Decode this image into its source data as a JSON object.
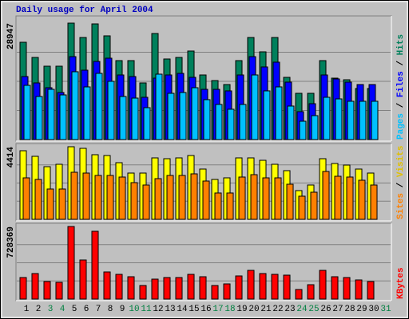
{
  "chart_data": [
    {
      "type": "bar",
      "title": "Daily usage for April 2004",
      "legend_separator": " / ",
      "ylim": [
        0,
        28947
      ],
      "yticks": [
        28947
      ],
      "grid": true,
      "series": [
        {
          "name": "Hits",
          "color": "#00805c",
          "values": [
            24190,
            20420,
            18240,
            18240,
            28947,
            25380,
            28750,
            25780,
            19630,
            19630,
            14080,
            26370,
            20030,
            20420,
            22010,
            16060,
            14670,
            13680,
            19630,
            25380,
            21810,
            25380,
            15470,
            11500,
            11500,
            19630,
            15270,
            14870,
            12690,
            12690,
            null
          ]
        },
        {
          "name": "Files",
          "color": "#0000ff",
          "values": [
            15670,
            14080,
            12890,
            11700,
            20620,
            17250,
            19430,
            20230,
            16060,
            15670,
            10510,
            15270,
            16060,
            16460,
            15470,
            12490,
            12490,
            12100,
            16060,
            20620,
            18050,
            19240,
            14280,
            6940,
            8920,
            16060,
            15070,
            14280,
            13680,
            13680,
            null
          ]
        },
        {
          "name": "Pages",
          "color": "#00c0ff",
          "values": [
            13480,
            10710,
            12490,
            11100,
            16860,
            13090,
            16460,
            14480,
            10710,
            10310,
            7930,
            16260,
            11500,
            11700,
            12890,
            9920,
            8730,
            7540,
            8730,
            16060,
            12100,
            13090,
            8330,
            4560,
            5950,
            10510,
            10110,
            9520,
            9520,
            9520,
            null
          ]
        }
      ]
    },
    {
      "type": "bar",
      "legend_separator": " / ",
      "ylim": [
        0,
        4414
      ],
      "yticks": [
        4414
      ],
      "grid": true,
      "series": [
        {
          "name": "Visits",
          "color": "#ffff00",
          "label_color": "#e0c000",
          "values": [
            4171,
            3832,
            3201,
            3347,
            4414,
            4317,
            3929,
            3880,
            3444,
            2813,
            2813,
            3735,
            3686,
            3735,
            3880,
            3056,
            2425,
            2522,
            3735,
            3735,
            3589,
            3347,
            2959,
            1746,
            2086,
            3686,
            3395,
            3298,
            3056,
            2813,
            null
          ]
        },
        {
          "name": "Sites",
          "color": "#ff8000",
          "values": [
            2522,
            2425,
            1843,
            1843,
            2862,
            2813,
            2668,
            2668,
            2571,
            2231,
            2086,
            2474,
            2668,
            2668,
            2765,
            2328,
            1601,
            1601,
            2571,
            2716,
            2522,
            2522,
            2134,
            1407,
            1649,
            2910,
            2619,
            2571,
            2377,
            2086,
            null
          ]
        }
      ]
    },
    {
      "type": "bar",
      "ylim": [
        0,
        728369
      ],
      "yticks": [
        728369
      ],
      "grid": true,
      "categories": [
        "1",
        "2",
        "3",
        "4",
        "5",
        "6",
        "7",
        "8",
        "9",
        "10",
        "11",
        "12",
        "13",
        "14",
        "15",
        "16",
        "17",
        "18",
        "19",
        "20",
        "21",
        "22",
        "23",
        "24",
        "25",
        "26",
        "27",
        "28",
        "29",
        "30",
        "31"
      ],
      "category_colors": [
        "#000000",
        "#000000",
        "#008040",
        "#008040",
        "#000000",
        "#000000",
        "#000000",
        "#000000",
        "#000000",
        "#008040",
        "#008040",
        "#000000",
        "#000000",
        "#000000",
        "#000000",
        "#000000",
        "#008040",
        "#008040",
        "#000000",
        "#000000",
        "#000000",
        "#000000",
        "#000000",
        "#008040",
        "#008040",
        "#000000",
        "#000000",
        "#000000",
        "#000000",
        "#000000",
        "#008040"
      ],
      "series": [
        {
          "name": "KBytes",
          "color": "#ff0000",
          "values": [
            216100,
            256100,
            176100,
            168100,
            728369,
            392200,
            680300,
            272100,
            248100,
            224100,
            136100,
            200100,
            216100,
            216100,
            248100,
            224100,
            136100,
            152100,
            232100,
            288100,
            256100,
            248100,
            240100,
            96000,
            144100,
            288100,
            224100,
            216100,
            192100,
            176100,
            null
          ]
        }
      ]
    }
  ]
}
